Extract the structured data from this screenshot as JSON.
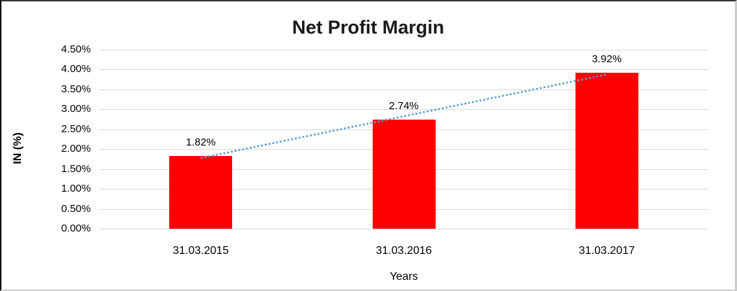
{
  "chart_data": {
    "type": "bar",
    "title": "Net Profit Margin",
    "xlabel": "Years",
    "ylabel": "IN (%)",
    "categories": [
      "31.03.2015",
      "31.03.2016",
      "31.03.2017"
    ],
    "values": [
      1.82,
      2.74,
      3.92
    ],
    "data_labels": [
      "1.82%",
      "2.74%",
      "3.92%"
    ],
    "y_ticks": [
      "0.00%",
      "0.50%",
      "1.00%",
      "1.50%",
      "2.00%",
      "2.50%",
      "3.00%",
      "3.50%",
      "4.00%",
      "4.50%"
    ],
    "y_tick_step": 0.5,
    "ylim": [
      0,
      4.5
    ],
    "grid": true,
    "legend": "none",
    "bar_color": "#ff0000",
    "gridline_color": "#d9d9d9",
    "text_color": "#000000",
    "trendline": {
      "type": "linear",
      "style": "dotted",
      "color": "#5b9bd5"
    }
  }
}
